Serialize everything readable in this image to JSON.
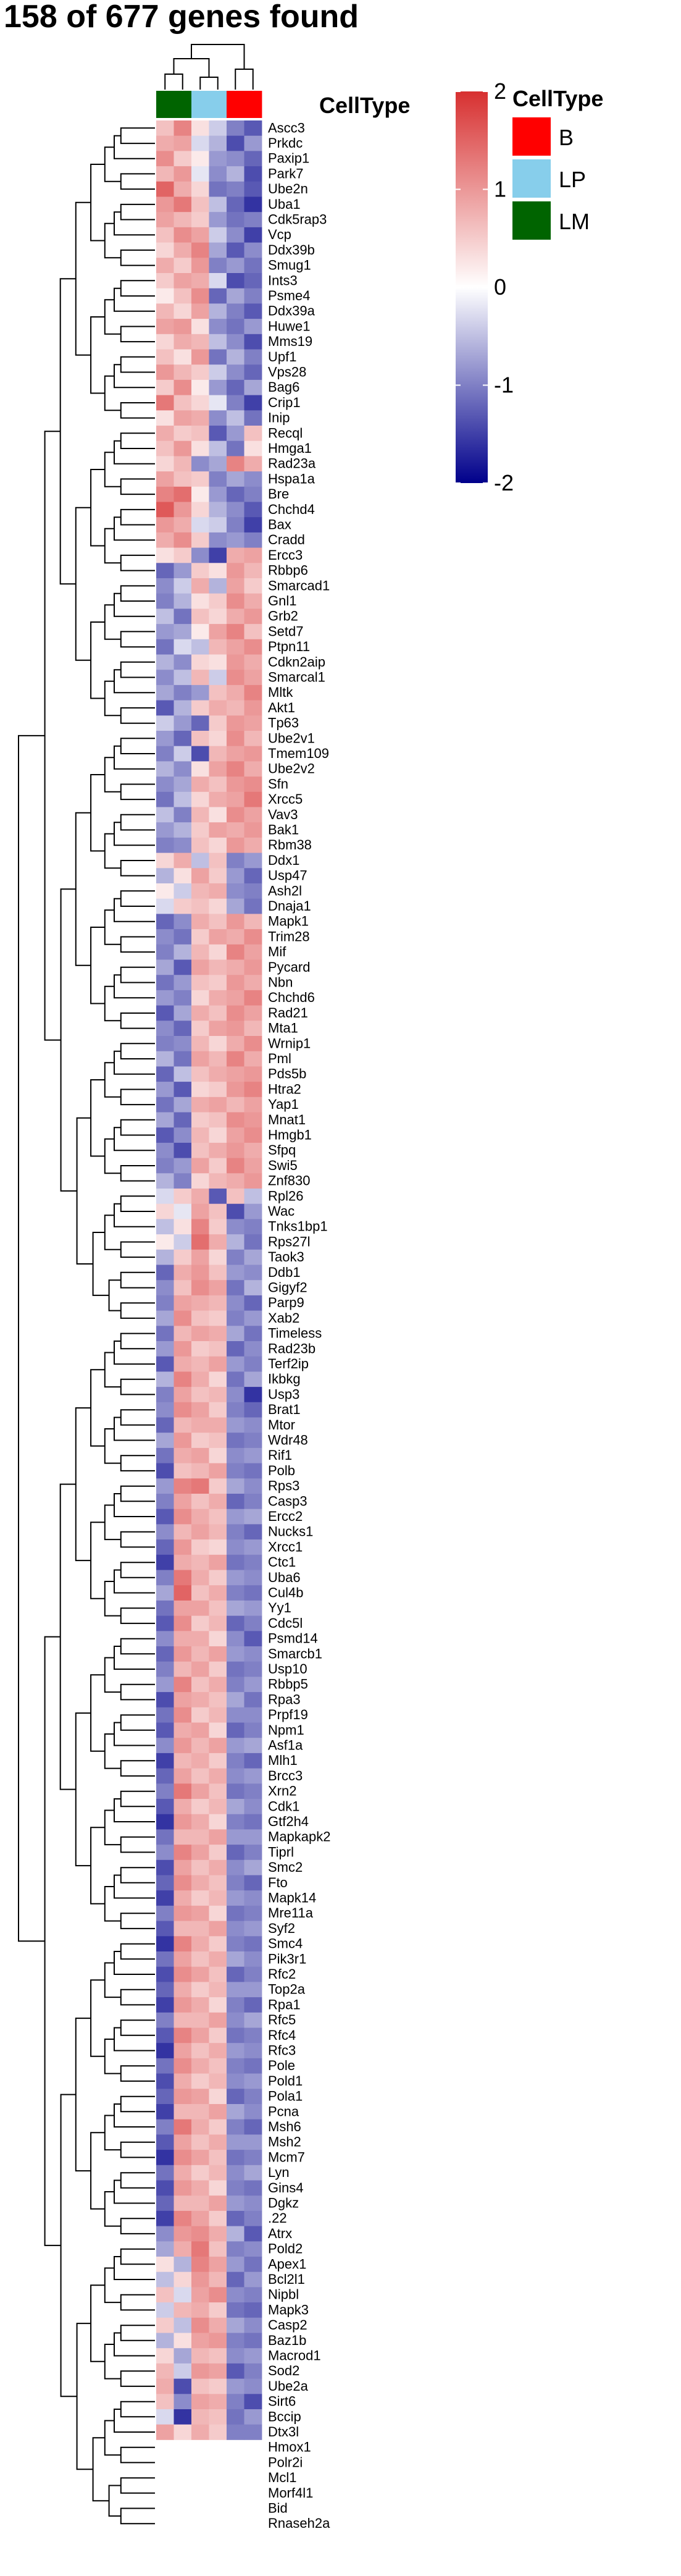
{
  "chart_data": {
    "type": "heatmap",
    "title": "158 of 677 genes found",
    "annotation_name": "CellType",
    "column_groups": [
      "LM",
      "LM",
      "LP",
      "LP",
      "B",
      "B"
    ],
    "legend": {
      "title": "CellType",
      "entries": [
        {
          "label": "B",
          "color": "#ff0000"
        },
        {
          "label": "LP",
          "color": "#87ceeb"
        },
        {
          "label": "LM",
          "color": "#006400"
        }
      ]
    },
    "color_scale": {
      "min": -2,
      "max": 2,
      "ticks": [
        "2",
        "1",
        "0",
        "-1",
        "-2"
      ],
      "low_color": "#00008b",
      "mid_color": "#ffffff",
      "high_color": "#d73030"
    },
    "rows": [
      "Ascc3",
      "Prkdc",
      "Paxip1",
      "Park7",
      "Ube2n",
      "Uba1",
      "Cdk5rap3",
      "Vcp",
      "Ddx39b",
      "Smug1",
      "Ints3",
      "Psme4",
      "Ddx39a",
      "Huwe1",
      "Mms19",
      "Upf1",
      "Vps28",
      "Bag6",
      "Crip1",
      "Inip",
      "Recql",
      "Hmga1",
      "Rad23a",
      "Hspa1a",
      "Bre",
      "Chchd4",
      "Bax",
      "Cradd",
      "Ercc3",
      "Rbbp6",
      "Smarcad1",
      "Gnl1",
      "Grb2",
      "Setd7",
      "Ptpn11",
      "Cdkn2aip",
      "Smarcal1",
      "Mltk",
      "Akt1",
      "Tp63",
      "Ube2v1",
      "Tmem109",
      "Ube2v2",
      "Sfn",
      "Xrcc5",
      "Vav3",
      "Bak1",
      "Rbm38",
      "Ddx1",
      "Usp47",
      "Ash2l",
      "Dnaja1",
      "Mapk1",
      "Trim28",
      "Mif",
      "Pycard",
      "Nbn",
      "Chchd6",
      "Rad21",
      "Mta1",
      "Wrnip1",
      "Pml",
      "Pds5b",
      "Htra2",
      "Yap1",
      "Mnat1",
      "Hmgb1",
      "Sfpq",
      "Swi5",
      "Znf830",
      "Rpl26",
      "Wac",
      "Tnks1bp1",
      "Rps27l",
      "Taok3",
      "Ddb1",
      "Gigyf2",
      "Parp9",
      "Xab2",
      "Timeless",
      "Rad23b",
      "Terf2ip",
      "Ikbkg",
      "Usp3",
      "Brat1",
      "Mtor",
      "Wdr48",
      "Rif1",
      "Polb",
      "Rps3",
      "Casp3",
      "Ercc2",
      "Nucks1",
      "Xrcc1",
      "Ctc1",
      "Uba6",
      "Cul4b",
      "Yy1",
      "Cdc5l",
      "Psmd14",
      "Smarcb1",
      "Usp10",
      "Rbbp5",
      "Rpa3",
      "Prpf19",
      "Npm1",
      "Asf1a",
      "Mlh1",
      "Brcc3",
      "Xrn2",
      "Cdk1",
      "Gtf2h4",
      "Mapkapk2",
      "Tiprl",
      "Smc2",
      "Fto",
      "Mapk14",
      "Mre11a",
      "Syf2",
      "Smc4",
      "Pik3r1",
      "Rfc2",
      "Top2a",
      "Rpa1",
      "Rfc5",
      "Rfc4",
      "Rfc3",
      "Pole",
      "Pold1",
      "Pola1",
      "Pcna",
      "Msh6",
      "Msh2",
      "Mcm7",
      "Lyn",
      "Gins4",
      "Dgkz",
      ".22",
      "Atrx",
      "Pold2",
      "Apex1",
      "Bcl2l1",
      "Nipbl",
      "Mapk3",
      "Casp2",
      "Baz1b",
      "Macrod1",
      "Sod2",
      "Ube2a",
      "Sirt6",
      "Bccip",
      "Dtx3l",
      "Hmox1",
      "Polr2i",
      "Mcl1",
      "Morf4l1",
      "Bid",
      "Rnaseh2a"
    ],
    "values": [
      [
        0.6,
        1.2,
        0.3,
        -0.4,
        -1.0,
        -1.3
      ],
      [
        0.8,
        0.9,
        -0.3,
        -0.6,
        -1.4,
        -0.8
      ],
      [
        1.1,
        0.5,
        0.2,
        -0.8,
        -0.9,
        -1.2
      ],
      [
        0.7,
        1.0,
        -0.2,
        -0.9,
        -0.6,
        -1.4
      ],
      [
        1.5,
        0.8,
        0.4,
        -1.1,
        -1.0,
        -1.3
      ],
      [
        1.0,
        1.3,
        0.6,
        -0.5,
        -1.2,
        -1.6
      ],
      [
        0.9,
        0.7,
        0.5,
        -0.8,
        -1.1,
        -1.0
      ],
      [
        0.6,
        1.1,
        0.9,
        -0.4,
        -0.9,
        -1.5
      ],
      [
        0.4,
        0.8,
        1.2,
        -0.7,
        -1.3,
        -0.9
      ],
      [
        0.8,
        0.5,
        1.0,
        -1.0,
        -0.8,
        -1.1
      ],
      [
        0.5,
        0.9,
        0.8,
        -0.3,
        -1.4,
        -1.2
      ],
      [
        0.2,
        0.6,
        1.1,
        -1.2,
        -0.7,
        -1.0
      ],
      [
        0.7,
        0.4,
        0.9,
        -0.6,
        -1.0,
        -1.3
      ],
      [
        0.9,
        1.0,
        0.3,
        -0.9,
        -1.1,
        -0.8
      ],
      [
        0.4,
        0.8,
        0.7,
        -0.5,
        -0.9,
        -1.4
      ],
      [
        0.6,
        0.3,
        1.0,
        -1.1,
        -0.6,
        -1.0
      ],
      [
        1.0,
        0.7,
        0.5,
        -0.4,
        -0.9,
        -1.2
      ],
      [
        0.5,
        1.1,
        0.2,
        -0.8,
        -1.2,
        -0.7
      ],
      [
        1.3,
        0.6,
        0.4,
        -0.2,
        -1.0,
        -1.5
      ],
      [
        0.3,
        0.9,
        0.8,
        -0.9,
        -0.5,
        -1.1
      ],
      [
        0.8,
        0.5,
        0.6,
        -1.3,
        -0.8,
        0.6
      ],
      [
        0.6,
        1.0,
        0.3,
        -0.5,
        -1.1,
        0.3
      ],
      [
        0.4,
        0.7,
        -0.9,
        -0.7,
        1.2,
        0.8
      ],
      [
        0.9,
        0.6,
        0.5,
        -1.0,
        -0.7,
        -0.9
      ],
      [
        1.2,
        1.4,
        0.2,
        -0.8,
        -1.2,
        -1.0
      ],
      [
        1.6,
        1.0,
        0.4,
        -0.6,
        -0.9,
        -1.3
      ],
      [
        1.0,
        0.8,
        -0.3,
        -0.4,
        -1.0,
        -1.5
      ],
      [
        0.8,
        1.1,
        0.5,
        -0.9,
        -0.8,
        -1.0
      ],
      [
        0.3,
        0.5,
        -0.9,
        -1.5,
        0.8,
        0.9
      ],
      [
        -1.2,
        -0.8,
        0.5,
        0.3,
        1.0,
        0.7
      ],
      [
        -0.9,
        -0.4,
        0.8,
        -0.6,
        0.9,
        0.5
      ],
      [
        -1.0,
        -0.6,
        0.3,
        0.5,
        1.1,
        0.8
      ],
      [
        -0.5,
        -1.1,
        0.6,
        0.4,
        0.8,
        1.0
      ],
      [
        -0.8,
        -0.7,
        0.2,
        0.9,
        1.2,
        0.6
      ],
      [
        -1.1,
        -0.3,
        -0.5,
        0.7,
        0.9,
        1.1
      ],
      [
        -0.6,
        -0.9,
        0.4,
        0.3,
        1.0,
        0.8
      ],
      [
        -0.9,
        -0.5,
        0.7,
        -0.4,
        1.1,
        0.9
      ],
      [
        -0.7,
        -1.0,
        -0.8,
        0.6,
        0.8,
        1.2
      ],
      [
        -1.3,
        -0.6,
        0.5,
        0.8,
        0.7,
        1.0
      ],
      [
        -0.4,
        -0.8,
        -1.2,
        0.5,
        1.0,
        0.9
      ],
      [
        -0.8,
        -1.2,
        0.6,
        0.4,
        1.1,
        0.7
      ],
      [
        -1.0,
        -0.4,
        -1.4,
        0.7,
        0.9,
        1.0
      ],
      [
        -0.6,
        -0.9,
        0.3,
        0.9,
        1.2,
        0.8
      ],
      [
        -0.9,
        -0.7,
        0.8,
        0.6,
        1.0,
        1.1
      ],
      [
        -1.1,
        -0.5,
        0.4,
        0.8,
        0.9,
        1.3
      ],
      [
        -0.5,
        -1.0,
        0.7,
        0.3,
        1.1,
        0.9
      ],
      [
        -0.8,
        -0.6,
        0.5,
        0.9,
        0.8,
        1.0
      ],
      [
        -1.0,
        -0.9,
        0.6,
        0.4,
        1.0,
        0.8
      ],
      [
        0.4,
        0.8,
        -0.5,
        0.6,
        -1.0,
        -0.8
      ],
      [
        -0.6,
        0.3,
        0.9,
        0.5,
        -0.8,
        -1.2
      ],
      [
        0.2,
        -0.4,
        0.7,
        0.8,
        -0.9,
        -1.0
      ],
      [
        -0.3,
        0.5,
        0.6,
        0.4,
        -0.7,
        -1.1
      ],
      [
        -1.2,
        -0.9,
        0.8,
        0.6,
        1.0,
        0.7
      ],
      [
        -0.9,
        -1.1,
        0.5,
        0.9,
        0.8,
        1.1
      ],
      [
        -1.0,
        -0.6,
        0.7,
        0.4,
        1.2,
        0.9
      ],
      [
        -0.7,
        -1.3,
        0.9,
        0.7,
        0.8,
        1.0
      ],
      [
        -1.1,
        -0.8,
        0.6,
        0.5,
        1.0,
        0.8
      ],
      [
        -0.8,
        -1.0,
        0.4,
        0.8,
        0.9,
        1.2
      ],
      [
        -1.3,
        -0.7,
        0.8,
        0.6,
        1.1,
        0.9
      ],
      [
        -0.9,
        -1.2,
        0.5,
        0.9,
        1.0,
        0.7
      ],
      [
        -1.0,
        -0.9,
        0.7,
        0.4,
        0.8,
        1.1
      ],
      [
        -0.6,
        -1.1,
        0.9,
        0.7,
        1.2,
        0.8
      ],
      [
        -1.2,
        -0.5,
        0.6,
        0.8,
        0.9,
        1.0
      ],
      [
        -0.8,
        -1.3,
        0.4,
        0.5,
        1.0,
        1.2
      ],
      [
        -1.1,
        -0.7,
        0.8,
        0.9,
        0.7,
        0.9
      ],
      [
        -0.7,
        -1.2,
        0.5,
        0.6,
        1.1,
        1.0
      ],
      [
        -1.3,
        -0.9,
        0.7,
        0.4,
        0.9,
        1.1
      ],
      [
        -0.9,
        -1.4,
        0.6,
        0.8,
        1.0,
        0.8
      ],
      [
        -1.0,
        -0.8,
        0.9,
        0.5,
        1.2,
        0.9
      ],
      [
        -0.6,
        -1.0,
        0.4,
        0.7,
        0.8,
        1.0
      ],
      [
        -0.3,
        0.5,
        0.8,
        -1.3,
        0.6,
        -0.5
      ],
      [
        0.4,
        -0.2,
        0.9,
        0.6,
        -1.4,
        -0.8
      ],
      [
        -0.5,
        0.3,
        1.2,
        0.5,
        -0.9,
        -1.0
      ],
      [
        0.2,
        -0.4,
        1.4,
        0.8,
        -0.6,
        -1.1
      ],
      [
        -0.6,
        0.5,
        0.9,
        0.4,
        -1.0,
        -0.7
      ],
      [
        -1.2,
        0.8,
        1.0,
        0.6,
        -0.8,
        -0.9
      ],
      [
        -0.9,
        0.6,
        1.1,
        0.9,
        -1.1,
        -0.6
      ],
      [
        -1.0,
        0.9,
        0.8,
        0.7,
        -0.9,
        -1.2
      ],
      [
        -0.7,
        1.1,
        0.6,
        0.5,
        -1.0,
        -0.8
      ],
      [
        -1.1,
        0.7,
        0.9,
        0.8,
        -0.7,
        -1.1
      ],
      [
        -0.8,
        1.0,
        0.5,
        0.6,
        -1.2,
        -0.9
      ],
      [
        -1.3,
        0.8,
        0.7,
        0.9,
        -0.8,
        -1.0
      ],
      [
        -0.6,
        1.2,
        0.8,
        0.4,
        -1.1,
        -0.7
      ],
      [
        -1.0,
        0.9,
        0.6,
        0.7,
        -0.9,
        -1.6
      ],
      [
        -0.9,
        1.1,
        0.9,
        0.5,
        -1.0,
        -1.2
      ],
      [
        -1.2,
        0.7,
        0.8,
        0.8,
        -0.8,
        -0.9
      ],
      [
        -0.7,
        1.0,
        0.5,
        0.6,
        -1.1,
        -1.0
      ],
      [
        -1.1,
        0.8,
        0.9,
        0.4,
        -0.9,
        -0.8
      ],
      [
        -1.4,
        0.6,
        0.7,
        0.9,
        -1.0,
        -1.1
      ],
      [
        -0.8,
        1.2,
        1.3,
        0.5,
        -0.7,
        -0.9
      ],
      [
        -1.0,
        0.9,
        0.6,
        0.8,
        -1.2,
        -1.0
      ],
      [
        -1.3,
        1.1,
        0.8,
        0.6,
        -0.8,
        -0.7
      ],
      [
        -0.9,
        0.7,
        0.9,
        0.7,
        -1.0,
        -1.2
      ],
      [
        -1.2,
        1.0,
        0.5,
        0.4,
        -0.9,
        -0.8
      ],
      [
        -1.5,
        0.8,
        0.7,
        0.9,
        -1.1,
        -1.0
      ],
      [
        -1.0,
        1.3,
        0.8,
        0.5,
        -0.8,
        -0.9
      ],
      [
        -0.7,
        1.5,
        0.6,
        0.8,
        -1.0,
        -1.1
      ],
      [
        -1.1,
        0.9,
        0.9,
        0.6,
        -0.7,
        -0.8
      ],
      [
        -1.3,
        1.1,
        0.5,
        0.7,
        -1.2,
        -1.0
      ],
      [
        -0.9,
        0.8,
        0.8,
        0.4,
        -0.9,
        -1.3
      ],
      [
        -1.2,
        1.0,
        0.7,
        0.9,
        -0.8,
        -0.9
      ],
      [
        -1.0,
        0.7,
        0.9,
        0.5,
        -1.1,
        -1.0
      ],
      [
        -0.8,
        1.2,
        0.6,
        0.8,
        -1.0,
        -0.8
      ],
      [
        -1.4,
        0.9,
        0.8,
        0.6,
        -0.7,
        -1.1
      ],
      [
        -1.1,
        1.1,
        0.5,
        0.7,
        -0.9,
        -0.9
      ],
      [
        -1.3,
        0.8,
        0.9,
        0.4,
        -1.2,
        -1.0
      ],
      [
        -0.9,
        1.0,
        0.7,
        0.9,
        -0.8,
        -0.7
      ],
      [
        -1.5,
        0.7,
        0.8,
        0.5,
        -1.0,
        -1.2
      ],
      [
        -1.2,
        0.9,
        0.6,
        0.8,
        -0.9,
        -0.8
      ],
      [
        -1.0,
        1.3,
        0.9,
        0.6,
        -1.1,
        -1.0
      ],
      [
        -1.3,
        0.8,
        0.5,
        0.7,
        -0.7,
        -0.9
      ],
      [
        -1.6,
        1.0,
        0.8,
        0.4,
        -1.0,
        -1.1
      ],
      [
        -1.1,
        0.7,
        0.7,
        0.9,
        -0.8,
        -0.8
      ],
      [
        -0.9,
        1.2,
        0.9,
        0.5,
        -1.2,
        -1.0
      ],
      [
        -1.4,
        0.9,
        0.6,
        0.8,
        -0.9,
        -0.7
      ],
      [
        -1.2,
        1.1,
        0.8,
        0.6,
        -1.0,
        -1.2
      ],
      [
        -1.5,
        0.8,
        0.5,
        0.7,
        -0.8,
        -0.9
      ],
      [
        -1.0,
        1.0,
        0.9,
        0.4,
        -1.1,
        -1.0
      ],
      [
        -1.3,
        0.7,
        0.7,
        0.9,
        -0.9,
        -0.8
      ],
      [
        -1.6,
        1.2,
        0.8,
        0.5,
        -1.0,
        -1.1
      ],
      [
        -1.1,
        0.9,
        0.6,
        0.8,
        -0.7,
        -0.9
      ],
      [
        -1.4,
        1.1,
        0.9,
        0.6,
        -1.2,
        -1.0
      ],
      [
        -1.2,
        0.8,
        0.5,
        0.7,
        -0.8,
        -0.8
      ],
      [
        -1.5,
        1.0,
        0.8,
        0.4,
        -1.0,
        -1.2
      ],
      [
        -1.0,
        0.7,
        0.7,
        0.9,
        -0.9,
        -0.7
      ],
      [
        -1.3,
        1.2,
        0.9,
        0.5,
        -1.1,
        -1.0
      ],
      [
        -1.6,
        0.9,
        0.6,
        0.8,
        -0.8,
        -0.9
      ],
      [
        -1.1,
        1.1,
        0.8,
        0.6,
        -1.0,
        -1.1
      ],
      [
        -1.4,
        0.8,
        0.5,
        0.7,
        -0.9,
        -0.8
      ],
      [
        -1.2,
        1.0,
        0.9,
        0.4,
        -1.2,
        -1.0
      ],
      [
        -1.5,
        0.7,
        0.7,
        0.9,
        -0.7,
        -0.9
      ],
      [
        -1.0,
        1.3,
        0.8,
        0.5,
        -1.0,
        -1.2
      ],
      [
        -1.3,
        0.9,
        0.6,
        0.8,
        -0.8,
        -0.8
      ],
      [
        -1.6,
        1.1,
        0.9,
        0.6,
        -1.1,
        -1.0
      ],
      [
        -1.1,
        0.8,
        0.5,
        0.7,
        -0.9,
        -0.7
      ],
      [
        -1.4,
        1.0,
        0.8,
        0.4,
        -1.0,
        -1.1
      ],
      [
        -1.2,
        0.7,
        0.7,
        0.9,
        -0.8,
        -0.9
      ],
      [
        -1.5,
        1.2,
        0.9,
        0.5,
        -1.2,
        -1.0
      ],
      [
        -0.9,
        1.0,
        1.1,
        0.8,
        -0.6,
        -1.3
      ],
      [
        -0.7,
        0.8,
        1.3,
        0.6,
        -1.0,
        -0.9
      ],
      [
        0.3,
        -0.6,
        1.2,
        0.9,
        -0.8,
        -1.1
      ],
      [
        -0.5,
        0.4,
        1.0,
        0.7,
        -1.2,
        -0.8
      ],
      [
        0.6,
        -0.3,
        0.9,
        1.1,
        -0.9,
        -1.0
      ],
      [
        -0.4,
        0.7,
        0.8,
        0.5,
        -1.1,
        -1.2
      ],
      [
        0.5,
        -0.5,
        1.1,
        0.8,
        -0.7,
        -0.9
      ],
      [
        -0.6,
        0.3,
        0.9,
        1.0,
        -1.0,
        -1.1
      ],
      [
        0.4,
        -0.7,
        0.7,
        0.6,
        -0.9,
        -0.8
      ],
      [
        0.7,
        -0.4,
        1.0,
        0.9,
        -1.3,
        -1.0
      ],
      [
        0.8,
        -1.4,
        0.6,
        0.5,
        -0.8,
        -0.9
      ],
      [
        0.6,
        -0.9,
        0.9,
        0.8,
        -1.0,
        -1.4
      ],
      [
        -0.3,
        -1.6,
        0.7,
        0.6,
        -1.1,
        -0.8
      ],
      [
        0.9,
        0.4,
        0.8,
        0.5,
        -1.0,
        -1.0
      ]
    ]
  }
}
